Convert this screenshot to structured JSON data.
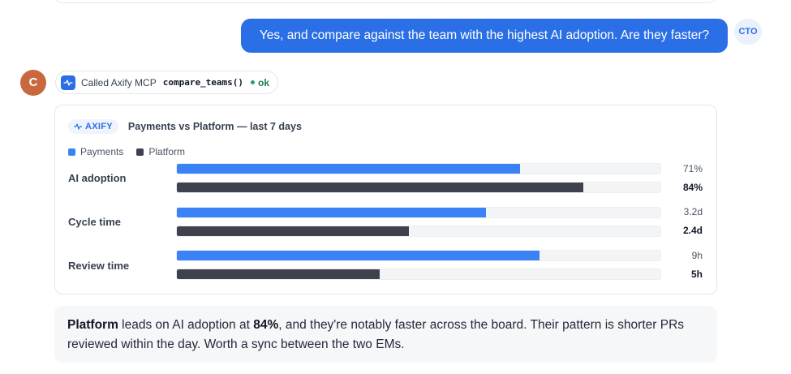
{
  "user_message": {
    "text": "Yes, and compare against the team with the highest AI adoption. Are they faster?",
    "avatar": "CTO"
  },
  "agent": {
    "avatar": "C",
    "tool_call": {
      "prefix": "Called Axify MCP",
      "function": "compare_teams()",
      "status": "ok",
      "icon": "pulse-icon"
    }
  },
  "card": {
    "badge": "AXIFY",
    "title": "Payments vs Platform — last 7 days",
    "legend": [
      {
        "name": "Payments",
        "color": "#3b82f6"
      },
      {
        "name": "Platform",
        "color": "#3f424d"
      }
    ],
    "metrics": [
      {
        "label": "AI adoption",
        "payments": {
          "text": "71%",
          "fraction": 0.71
        },
        "platform": {
          "text": "84%",
          "fraction": 0.84
        }
      },
      {
        "label": "Cycle time",
        "payments": {
          "text": "3.2d",
          "fraction": 0.64
        },
        "platform": {
          "text": "2.4d",
          "fraction": 0.48
        }
      },
      {
        "label": "Review time",
        "payments": {
          "text": "9h",
          "fraction": 0.75
        },
        "platform": {
          "text": "5h",
          "fraction": 0.42
        }
      }
    ]
  },
  "answer": {
    "team": "Platform",
    "part1": " leads on AI adoption at ",
    "value": "84%",
    "part2": ", and they're notably faster across the board. Their pattern is shorter PRs reviewed within the day. Worth a sync between the two EMs."
  },
  "colors": {
    "accent": "#2b6fe6",
    "payments": "#3b82f6",
    "platform": "#3f424d",
    "agent_avatar": "#c8683f",
    "ok": "#22a06b"
  }
}
